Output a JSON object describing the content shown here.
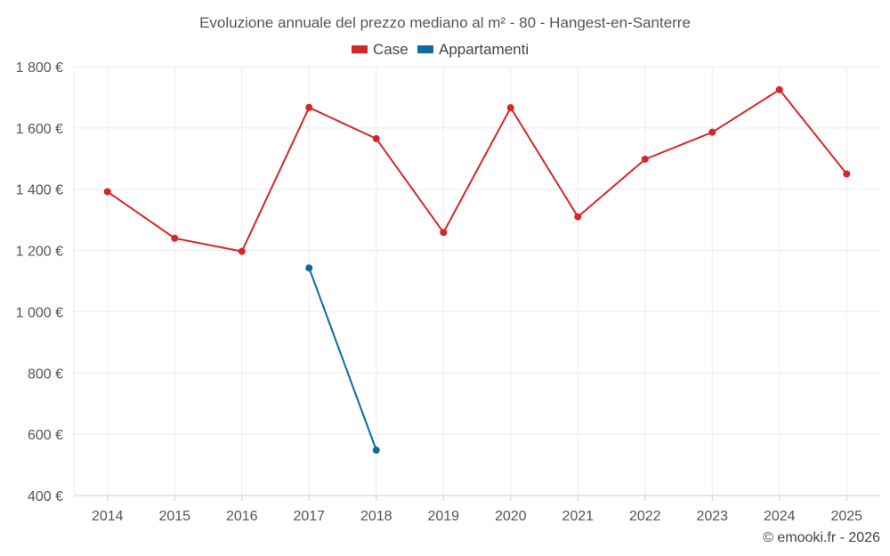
{
  "chart_data": {
    "type": "line",
    "title": "Evoluzione annuale del prezzo mediano al m² - 80 - Hangest-en-Santerre",
    "categories": [
      "2014",
      "2015",
      "2016",
      "2017",
      "2018",
      "2019",
      "2020",
      "2021",
      "2022",
      "2023",
      "2024",
      "2025"
    ],
    "series": [
      {
        "name": "Case",
        "color": "#d62728",
        "values": [
          1392,
          1240,
          1197,
          1667,
          1565,
          1259,
          1666,
          1310,
          1498,
          1586,
          1725,
          1450
        ]
      },
      {
        "name": "Appartamenti",
        "color": "#0b6aa2",
        "values": [
          null,
          null,
          null,
          1143,
          548,
          null,
          null,
          null,
          null,
          null,
          null,
          null
        ]
      }
    ],
    "ylim": [
      400,
      1800
    ],
    "yticks": [
      400,
      600,
      800,
      1000,
      1200,
      1400,
      1600,
      1800
    ],
    "ytick_labels": [
      "400 €",
      "600 €",
      "800 €",
      "1 000 €",
      "1 200 €",
      "1 400 €",
      "1 600 €",
      "1 800 €"
    ],
    "xlabel": "",
    "ylabel": "",
    "grid": true,
    "legend_position": "top-center"
  },
  "credit": "© emooki.fr - 2026"
}
